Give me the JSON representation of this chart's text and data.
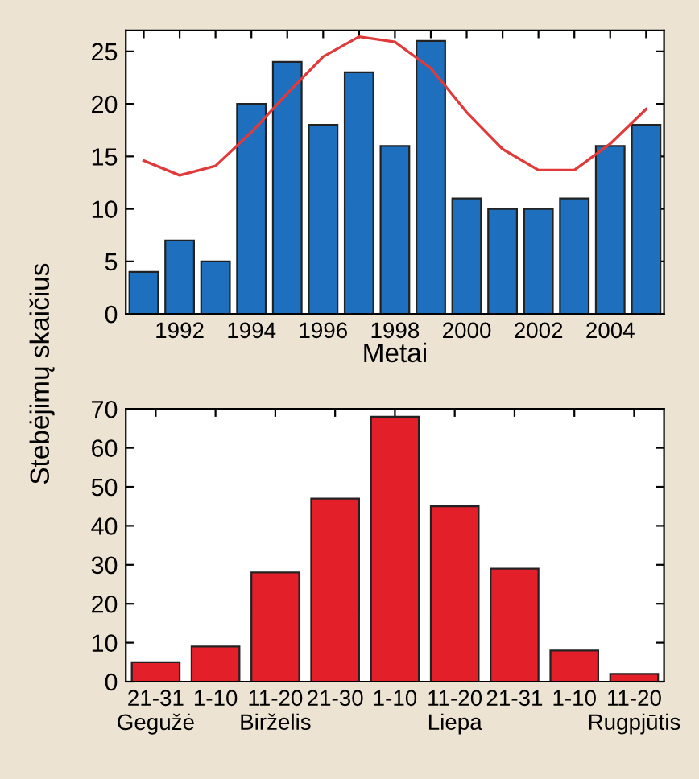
{
  "chart_data": [
    {
      "type": "bar",
      "xlabel": "Metai",
      "ylabel": "Stebėjimų skaičius",
      "x": [
        1991,
        1992,
        1993,
        1994,
        1995,
        1996,
        1997,
        1998,
        1999,
        2000,
        2001,
        2002,
        2003,
        2004,
        2005
      ],
      "series": [
        {
          "color": "#1f6fbf",
          "values": [
            4,
            7,
            5,
            20,
            24,
            18,
            23,
            16,
            26,
            11,
            10,
            10,
            11,
            16,
            18
          ]
        },
        {
          "type": "line",
          "color": "#e03a3a",
          "values": [
            14.6,
            13.2,
            14.1,
            17.3,
            21.0,
            24.5,
            26.4,
            25.9,
            23.4,
            19.2,
            15.7,
            13.7,
            13.7,
            16.2,
            19.5
          ]
        }
      ],
      "xlim": [
        1990.5,
        2005.5
      ],
      "ylim": [
        0,
        27
      ],
      "xticks": [
        {
          "value": 1991,
          "label": null
        },
        1992,
        {
          "value": 1993,
          "label": null
        },
        1994,
        {
          "value": 1995,
          "label": null
        },
        1996,
        {
          "value": 1997,
          "label": null
        },
        1998,
        {
          "value": 1999,
          "label": null
        },
        2000,
        {
          "value": 2001,
          "label": null
        },
        2002,
        {
          "value": 2003,
          "label": null
        },
        2004,
        {
          "value": 2005,
          "label": null
        }
      ],
      "yticks": [
        0,
        5,
        10,
        15,
        20,
        25
      ],
      "grid": false,
      "legend": false
    },
    {
      "type": "bar",
      "categories": [
        "21-31\nGegužė",
        "1-10",
        "11-20\nBirželis",
        "21-30",
        "1-10",
        "11-20\nLiepa",
        "21-31",
        "1-10",
        "11-20\nRugpjūtis"
      ],
      "series": [
        {
          "color": "#e3202a",
          "values": [
            5,
            9,
            28,
            47,
            68,
            45,
            29,
            8,
            2
          ]
        }
      ],
      "ylim": [
        0,
        70
      ],
      "yticks": [
        0,
        10,
        20,
        30,
        40,
        50,
        60,
        70
      ],
      "grid": false,
      "legend": false
    }
  ]
}
